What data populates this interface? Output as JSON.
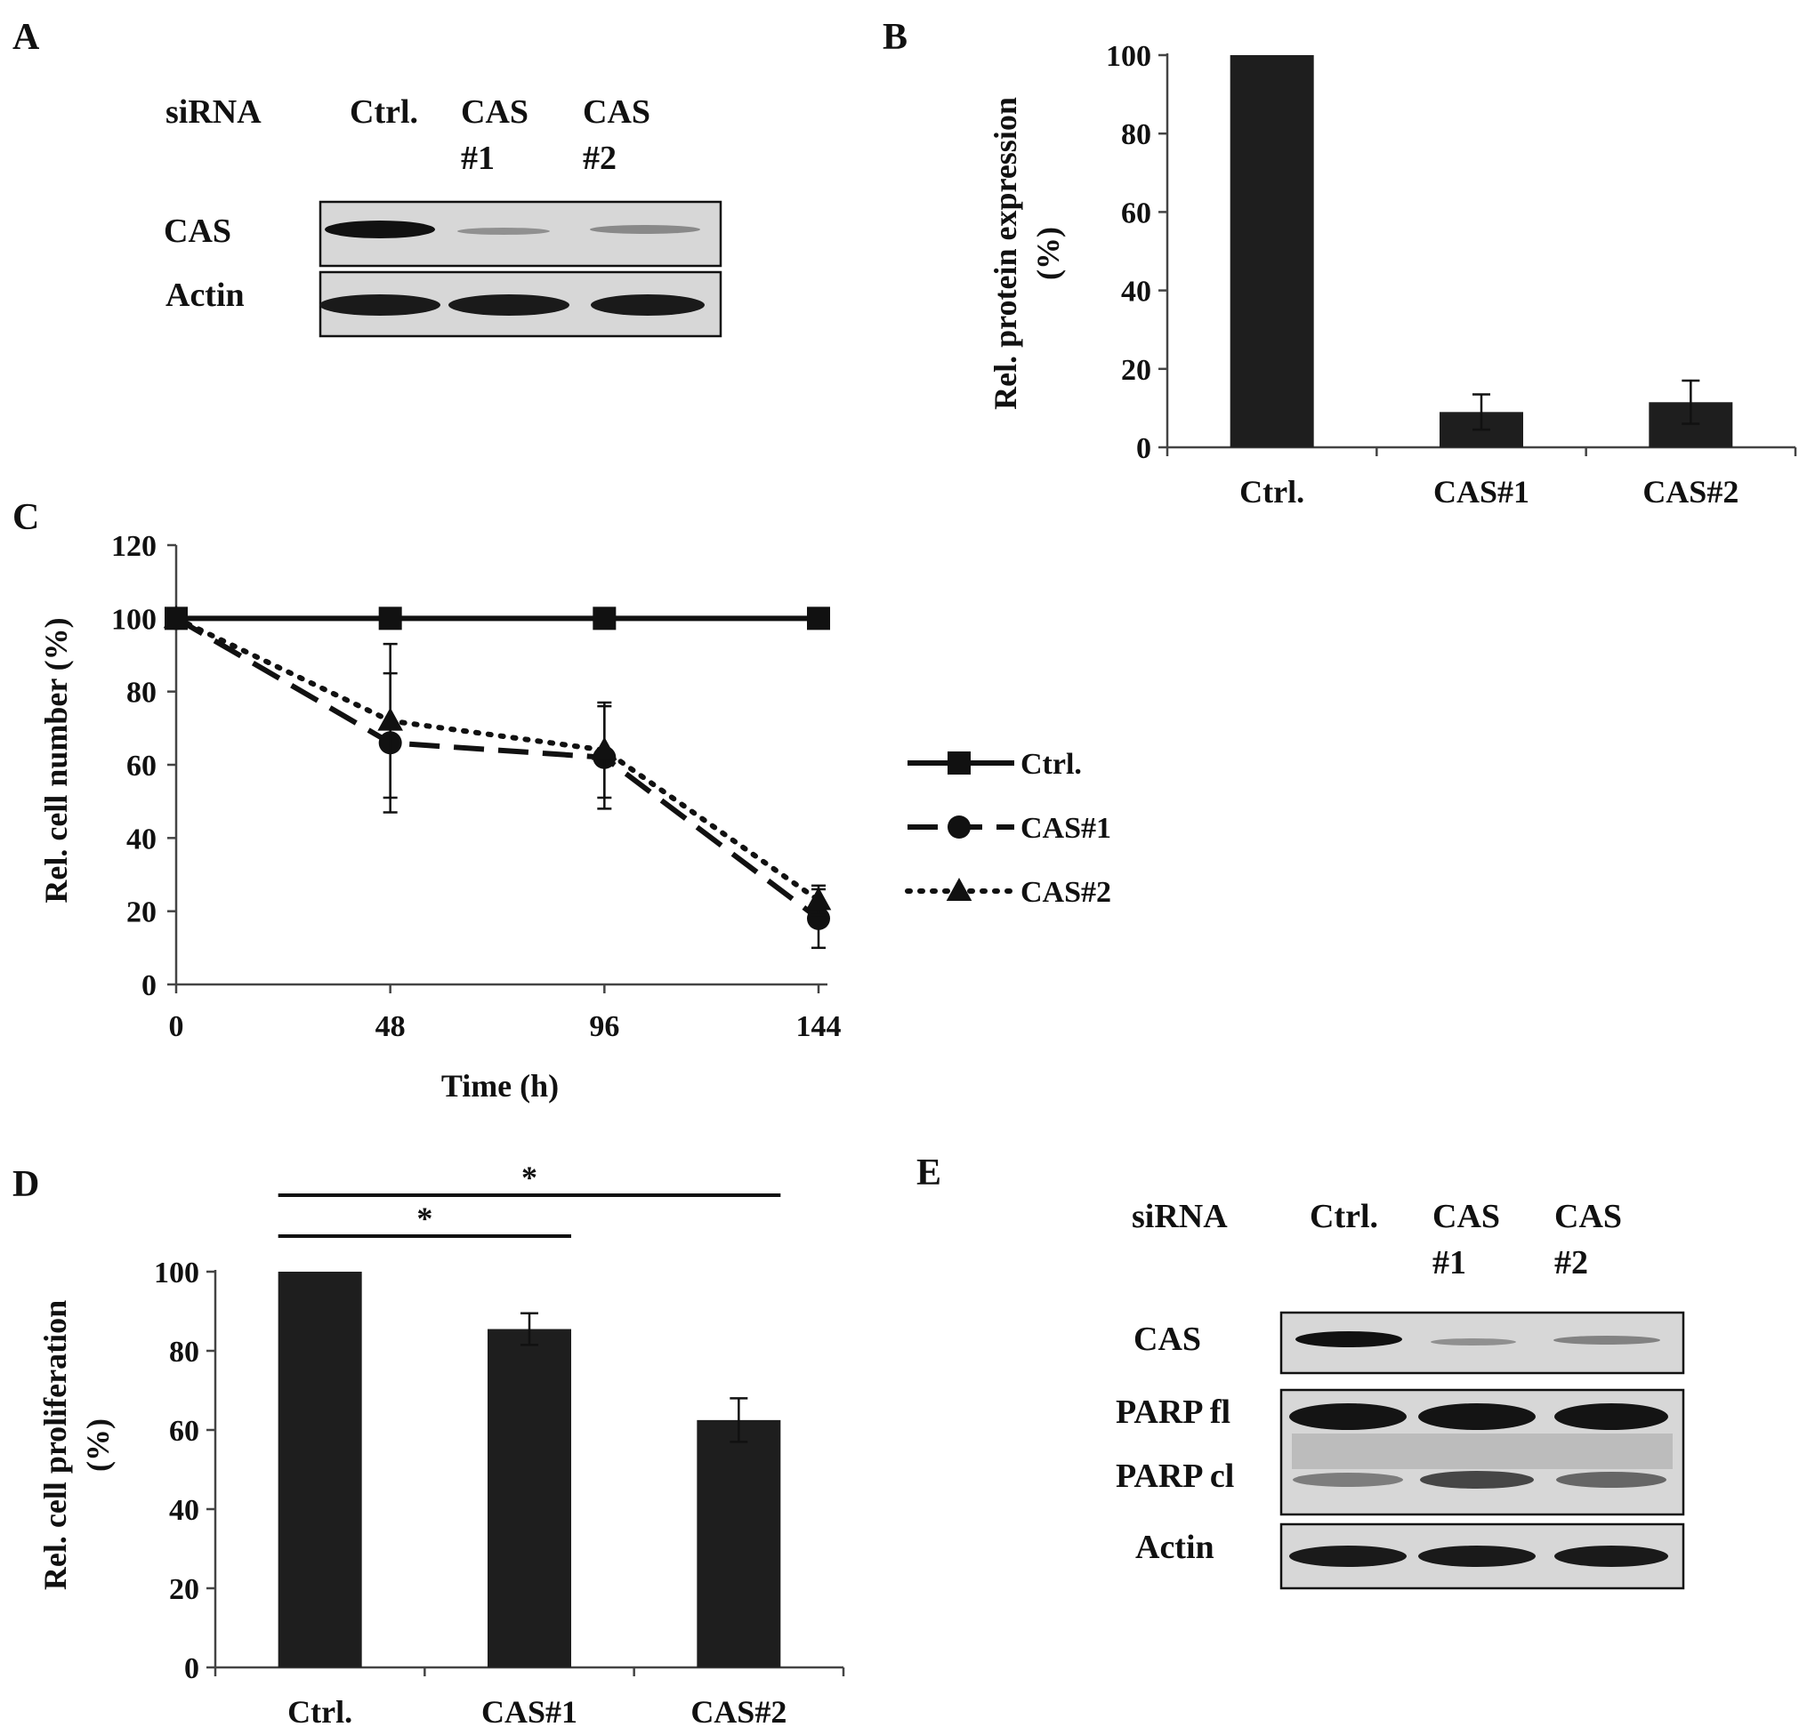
{
  "panels": {
    "A": {
      "letter": "A"
    },
    "B": {
      "letter": "B"
    },
    "C": {
      "letter": "C"
    },
    "D": {
      "letter": "D"
    },
    "E": {
      "letter": "E"
    }
  },
  "blot_a": {
    "header": "siRNA",
    "lanes": [
      {
        "line1": "Ctrl.",
        "line2": ""
      },
      {
        "line1": "CAS",
        "line2": "#1"
      },
      {
        "line1": "CAS",
        "line2": "#2"
      }
    ],
    "rows": [
      {
        "label": "CAS",
        "intensities": [
          1.0,
          0.12,
          0.15
        ]
      },
      {
        "label": "Actin",
        "intensities": [
          1.0,
          1.0,
          1.0
        ]
      }
    ]
  },
  "blot_e": {
    "header": "siRNA",
    "lanes": [
      {
        "line1": "Ctrl.",
        "line2": ""
      },
      {
        "line1": "CAS",
        "line2": "#1"
      },
      {
        "line1": "CAS",
        "line2": "#2"
      }
    ],
    "rows": [
      {
        "label": "CAS",
        "intensities": [
          1.0,
          0.12,
          0.2
        ]
      },
      {
        "label": "PARP fl",
        "intensities": [
          1.0,
          1.0,
          1.0
        ]
      },
      {
        "label": "PARP cl",
        "intensities": [
          0.45,
          0.75,
          0.55
        ]
      },
      {
        "label": "Actin",
        "intensities": [
          1.0,
          1.0,
          1.0
        ]
      }
    ]
  },
  "chart_data": [
    {
      "panel": "B",
      "type": "bar",
      "categories": [
        "Ctrl.",
        "CAS#1",
        "CAS#2"
      ],
      "values": [
        100,
        9,
        11.5
      ],
      "errors": [
        0,
        4.5,
        5.5
      ],
      "ylabel_line1": "Rel. protein expression",
      "ylabel_line2": "(%)",
      "xlabel": "",
      "ylim": [
        0,
        100
      ],
      "yticks": [
        0,
        20,
        40,
        60,
        80,
        100
      ],
      "bar_color": "#1e1e1e"
    },
    {
      "panel": "C",
      "type": "line",
      "x": [
        0,
        48,
        96,
        144
      ],
      "xticks": [
        0,
        48,
        96,
        144
      ],
      "xlim": [
        0,
        144
      ],
      "ylim": [
        0,
        120
      ],
      "yticks": [
        0,
        20,
        40,
        60,
        80,
        100,
        120
      ],
      "xlabel": "Time (h)",
      "ylabel": "Rel. cell number (%)",
      "legend_position": "right",
      "series": [
        {
          "name": "Ctrl.",
          "values": [
            100,
            100,
            100,
            100
          ],
          "errors": [
            0,
            0,
            0,
            0
          ],
          "marker": "square",
          "dash": "solid"
        },
        {
          "name": "CAS#1",
          "values": [
            100,
            66,
            62,
            18
          ],
          "errors": [
            0,
            19,
            14,
            8
          ],
          "marker": "circle",
          "dash": "dashed"
        },
        {
          "name": "CAS#2",
          "values": [
            100,
            72,
            64,
            23
          ],
          "errors": [
            0,
            21,
            13,
            4
          ],
          "marker": "triangle",
          "dash": "dotted"
        }
      ]
    },
    {
      "panel": "D",
      "type": "bar",
      "categories": [
        "Ctrl.",
        "CAS#1",
        "CAS#2"
      ],
      "values": [
        100,
        85.5,
        62.5
      ],
      "errors": [
        0,
        4,
        5.5
      ],
      "ylabel_line1": "Rel. cell proliferation",
      "ylabel_line2": "(%)",
      "xlabel": "",
      "ylim": [
        0,
        100
      ],
      "yticks": [
        0,
        20,
        40,
        60,
        80,
        100
      ],
      "bar_color": "#1e1e1e",
      "significance": [
        {
          "from": 0,
          "to": 1,
          "label": "*"
        },
        {
          "from": 0,
          "to": 2,
          "label": "*"
        }
      ]
    }
  ]
}
